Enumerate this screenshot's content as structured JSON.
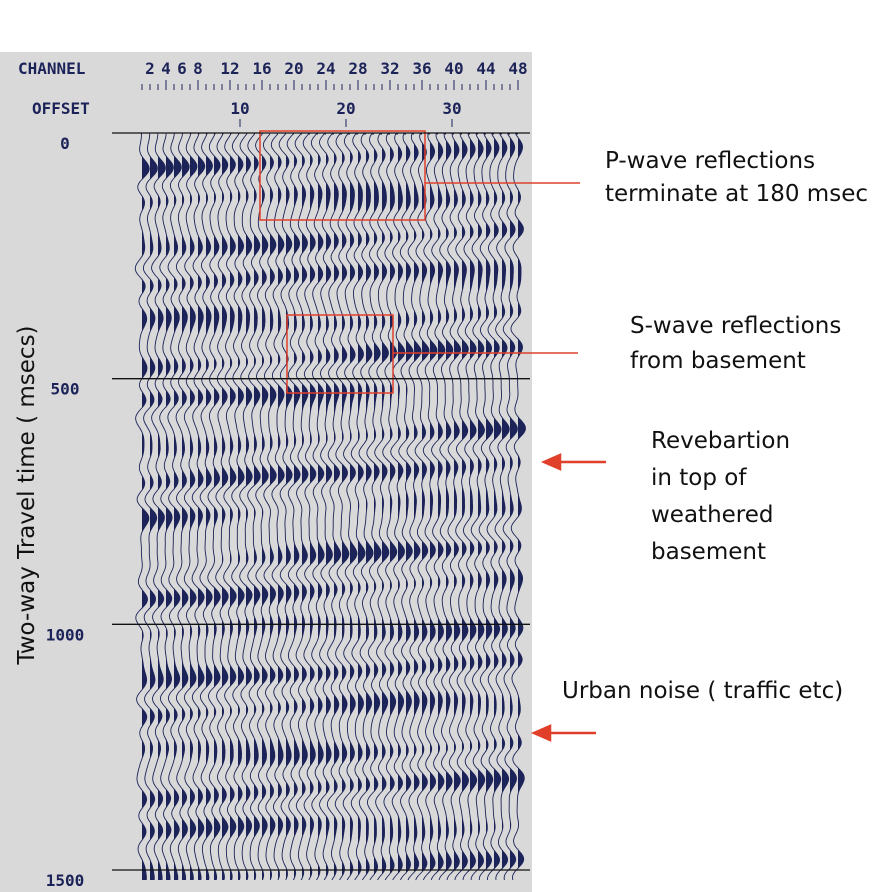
{
  "header": {
    "channel_title": "CHANNEL",
    "channel_labels": [
      2,
      4,
      6,
      8,
      12,
      16,
      20,
      24,
      28,
      32,
      36,
      40,
      44,
      48
    ],
    "offset_title": "OFFSET",
    "offset_labels": [
      10,
      20,
      30
    ]
  },
  "time_axis": {
    "title": "Two-way Travel time ( msecs)",
    "labels": [
      0,
      500,
      1000,
      1500
    ]
  },
  "annotations": {
    "p_wave": [
      "P-wave reflections",
      "terminate at 180 msec"
    ],
    "s_wave": [
      "S-wave reflections",
      "from basement"
    ],
    "reverberation": [
      "Revebartion",
      "in top of",
      "weathered",
      "basement"
    ],
    "urban_noise": [
      "Urban noise ( traffic etc)"
    ]
  }
}
